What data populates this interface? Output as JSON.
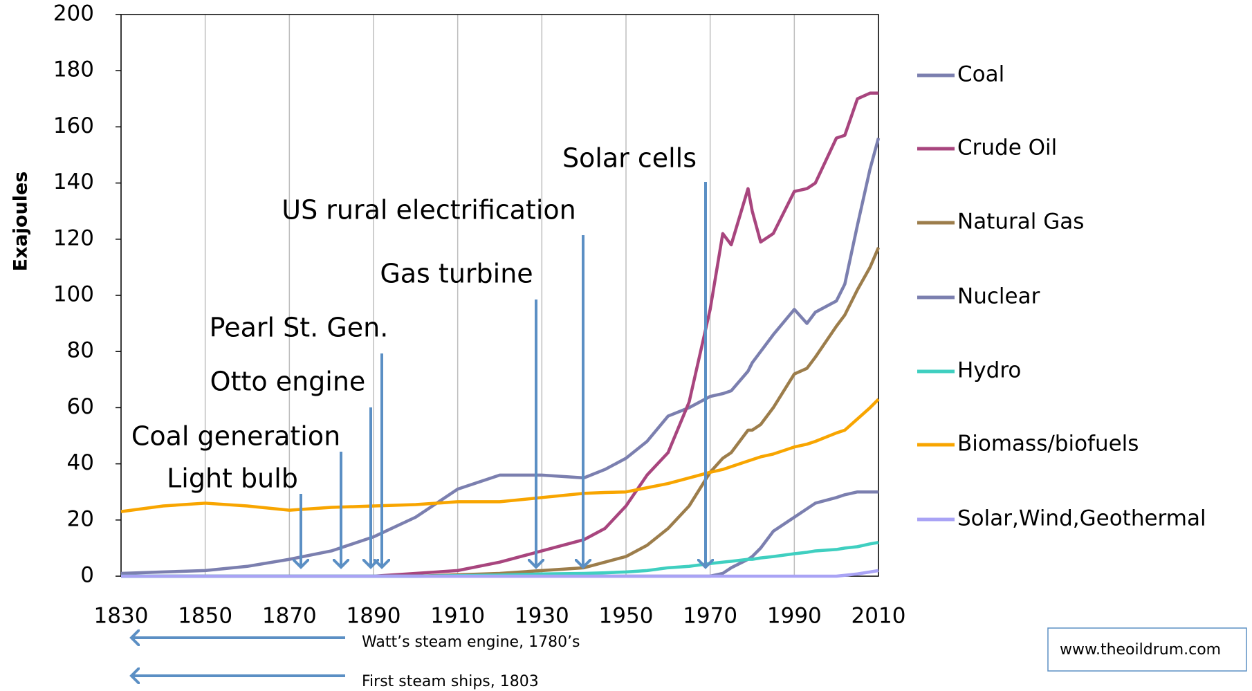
{
  "chart_data": {
    "type": "line",
    "y_label": "Exajoules",
    "x": [
      1830,
      1840,
      1850,
      1860,
      1870,
      1880,
      1890,
      1900,
      1910,
      1920,
      1930,
      1940,
      1945,
      1950,
      1955,
      1960,
      1965,
      1970,
      1973,
      1975,
      1979,
      1980,
      1982,
      1985,
      1990,
      1993,
      1995,
      2000,
      2002,
      2005,
      2008,
      2010
    ],
    "series": [
      {
        "name": "Coal",
        "color": "#7b7faf",
        "values": [
          1,
          1.5,
          2,
          3.5,
          6,
          9,
          14,
          21,
          31,
          36,
          36,
          35,
          38,
          42,
          48,
          57,
          60,
          64,
          65,
          66,
          73,
          76,
          80,
          86,
          95,
          90,
          94,
          98,
          104,
          125,
          145,
          156
        ]
      },
      {
        "name": "Crude Oil",
        "color": "#a8457e",
        "values": [
          0,
          0,
          0,
          0,
          0,
          0,
          0,
          1,
          2,
          5,
          9,
          13,
          17,
          25,
          36,
          44,
          62,
          95,
          122,
          118,
          138,
          130,
          119,
          122,
          137,
          138,
          140,
          156,
          157,
          170,
          172,
          172
        ]
      },
      {
        "name": "Natural Gas",
        "color": "#9c7d4b",
        "values": [
          0,
          0,
          0,
          0,
          0,
          0,
          0,
          0,
          0.5,
          1,
          2,
          3,
          5,
          7,
          11,
          17,
          25,
          37,
          42,
          44,
          52,
          52,
          54,
          60,
          72,
          74,
          78,
          89,
          93,
          102,
          110,
          117
        ]
      },
      {
        "name": "Nuclear",
        "color": "#7b7faf",
        "values": [
          0,
          0,
          0,
          0,
          0,
          0,
          0,
          0,
          0,
          0,
          0,
          0,
          0,
          0,
          0,
          0,
          0,
          0,
          1,
          3,
          6,
          7,
          10,
          16,
          21,
          24,
          26,
          28,
          29,
          30,
          30,
          30
        ]
      },
      {
        "name": "Hydro",
        "color": "#3fcfc0",
        "values": [
          0,
          0,
          0,
          0,
          0,
          0,
          0,
          0,
          0.2,
          0.4,
          0.8,
          1,
          1.2,
          1.5,
          2,
          3,
          3.5,
          4.5,
          5,
          5.3,
          6,
          6,
          6.5,
          7,
          8,
          8.5,
          9,
          9.5,
          10,
          10.5,
          11.5,
          12
        ]
      },
      {
        "name": "Biomass/biofuels",
        "color": "#f8a500",
        "values": [
          23,
          25,
          26,
          25,
          23.5,
          24.5,
          25,
          25.5,
          26.5,
          26.5,
          28,
          29.5,
          29.8,
          30,
          31.5,
          33,
          35,
          37,
          38,
          39,
          41,
          41.5,
          42.5,
          43.5,
          46,
          47,
          48,
          51,
          52,
          56,
          60,
          63
        ]
      },
      {
        "name": "Solar,Wind,Geothermal",
        "color": "#a9a3f5",
        "values": [
          0,
          0,
          0,
          0,
          0,
          0,
          0,
          0,
          0,
          0,
          0,
          0,
          0,
          0,
          0,
          0,
          0,
          0,
          0,
          0,
          0,
          0,
          0,
          0,
          0,
          0,
          0,
          0,
          0.3,
          0.8,
          1.5,
          2
        ]
      }
    ],
    "xlim": [
      1830,
      2010
    ],
    "xticks": [
      1830,
      1850,
      1870,
      1890,
      1910,
      1930,
      1950,
      1970,
      1990,
      2010
    ],
    "ylim": [
      0,
      200
    ],
    "yticks": [
      0,
      20,
      40,
      60,
      80,
      100,
      120,
      140,
      160,
      180,
      200
    ],
    "grid": "x",
    "annotations": [
      "Light bulb",
      "Coal generation",
      "Otto engine",
      "Pearl St. Gen.",
      "Gas turbine",
      "US rural electrification",
      "Solar cells"
    ],
    "footnotes": [
      "Watt’s steam engine, 1780’s",
      "First steam ships, 1803"
    ],
    "source": "www.theoildrum.com"
  }
}
